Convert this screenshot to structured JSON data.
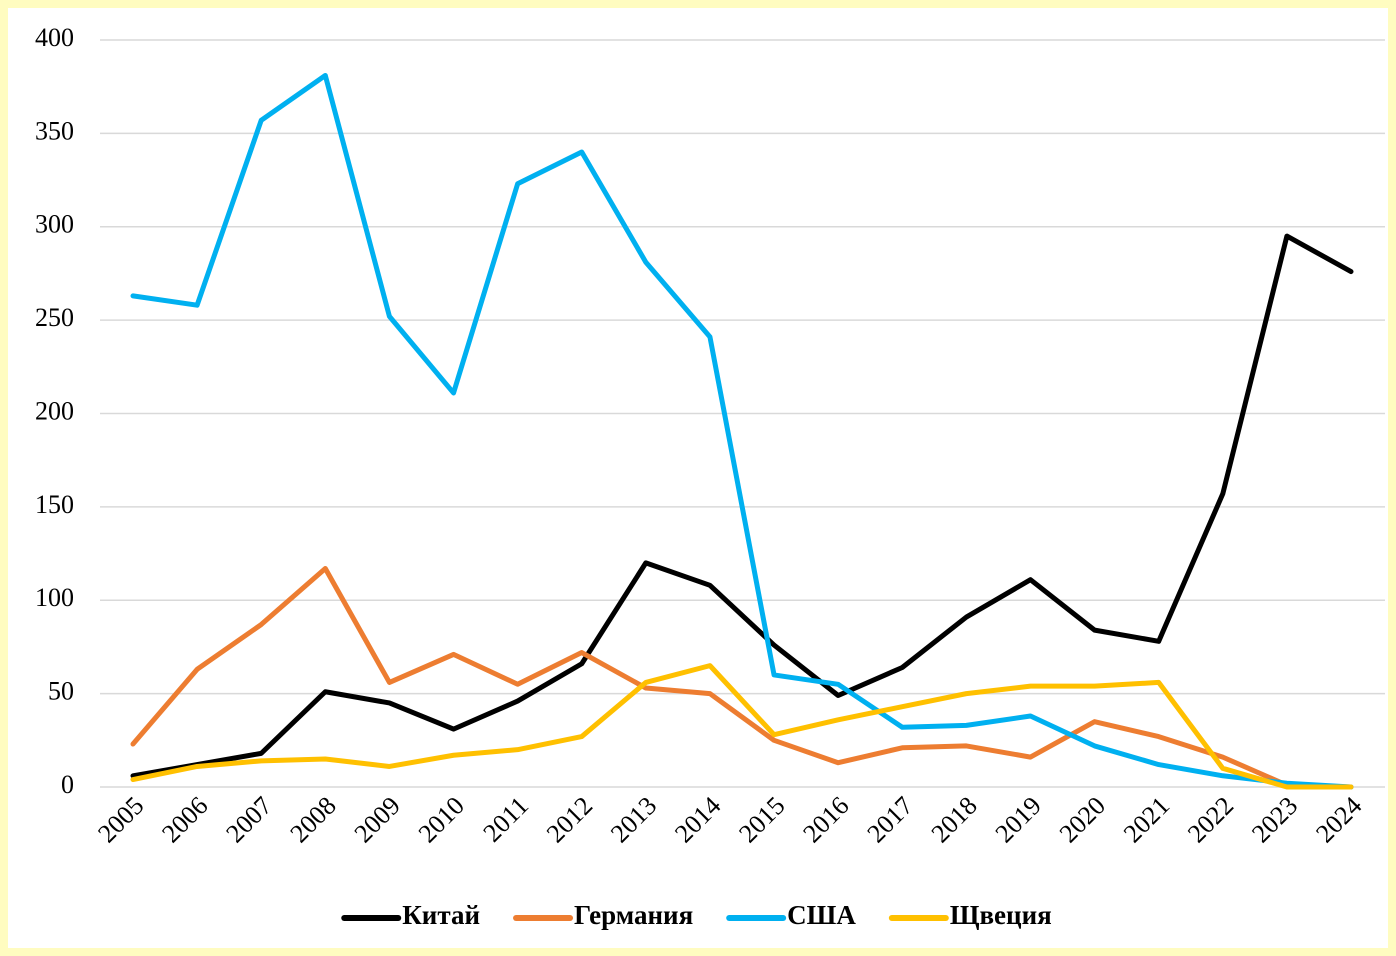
{
  "chart_data": {
    "type": "line",
    "categories": [
      "2005",
      "2006",
      "2007",
      "2008",
      "2009",
      "2010",
      "2011",
      "2012",
      "2013",
      "2014",
      "2015",
      "2016",
      "2017",
      "2018",
      "2019",
      "2020",
      "2021",
      "2022",
      "2023",
      "2024"
    ],
    "series": [
      {
        "name": "Китай",
        "color": "#000000",
        "values": [
          6,
          12,
          18,
          51,
          45,
          31,
          46,
          66,
          120,
          108,
          76,
          49,
          64,
          91,
          111,
          84,
          78,
          157,
          295,
          276
        ]
      },
      {
        "name": "Германия",
        "color": "#ed7d31",
        "values": [
          23,
          63,
          87,
          117,
          56,
          71,
          55,
          72,
          53,
          50,
          25,
          13,
          21,
          22,
          16,
          35,
          27,
          16,
          1,
          0
        ]
      },
      {
        "name": "США",
        "color": "#00b0f0",
        "values": [
          263,
          258,
          357,
          381,
          252,
          211,
          323,
          340,
          281,
          241,
          60,
          55,
          32,
          33,
          38,
          22,
          12,
          6,
          2,
          0
        ]
      },
      {
        "name": "Щвеция",
        "color": "#ffc000",
        "values": [
          4,
          11,
          14,
          15,
          11,
          17,
          20,
          27,
          56,
          65,
          28,
          36,
          43,
          50,
          54,
          54,
          56,
          10,
          0,
          0
        ]
      }
    ],
    "ylim": [
      0,
      400
    ],
    "yticks": [
      0,
      50,
      100,
      150,
      200,
      250,
      300,
      350,
      400
    ],
    "grid": true,
    "legend": "bottom"
  }
}
